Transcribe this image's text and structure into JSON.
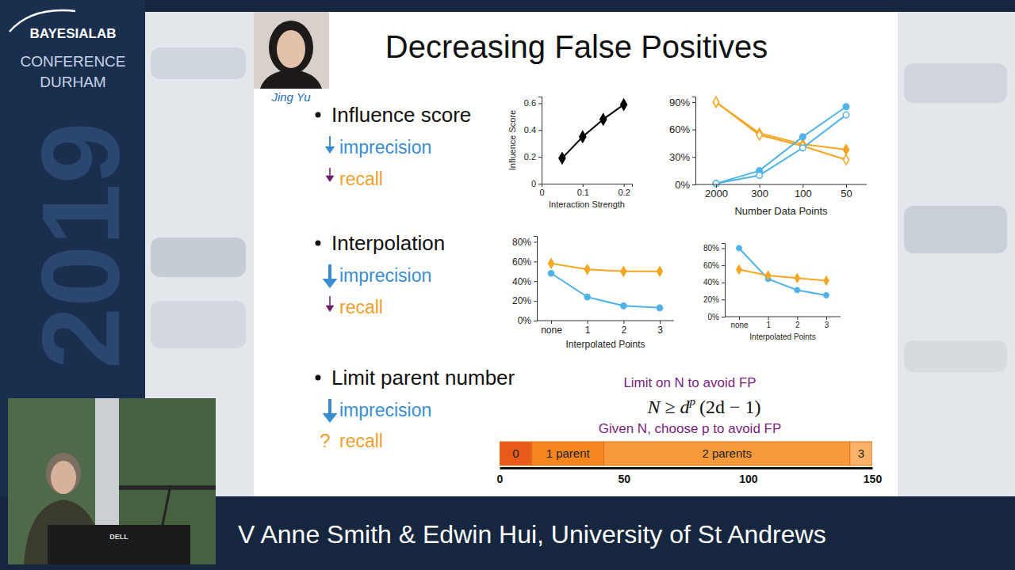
{
  "frame": {
    "logo": "BAYESIALAB",
    "event": "CONFERENCE",
    "city": "DURHAM",
    "year": "2019",
    "monitor_brand": "DELL",
    "caption": "V Anne Smith & Edwin Hui, University of St Andrews"
  },
  "slide": {
    "title": "Decreasing False Positives",
    "photo_caption": "Jing Yu",
    "bullets": [
      {
        "text": "Influence score",
        "effects": [
          {
            "text": "imprecision"
          },
          {
            "text": "recall"
          }
        ]
      },
      {
        "text": "Interpolation",
        "effects": [
          {
            "text": "imprecision"
          },
          {
            "text": "recall"
          }
        ]
      },
      {
        "text": "Limit parent number",
        "effects": [
          {
            "text": "imprecision"
          },
          {
            "prefix": "?",
            "text": "recall"
          }
        ]
      }
    ],
    "note": {
      "above": "Limit on N to avoid FP",
      "formula": {
        "base": "N ≥ d",
        "exponent": "p",
        "tail": "(2d − 1)"
      },
      "below": "Given N, choose p to avoid FP"
    }
  },
  "chart_data": [
    {
      "type": "line",
      "x": [
        0.05,
        0.1,
        0.15,
        0.2
      ],
      "values": [
        0.19,
        0.35,
        0.48,
        0.59
      ],
      "color": "#000000",
      "marker": "diamond",
      "x_label": "Interaction Strength",
      "y_label": "Influence Score",
      "xlim": [
        0,
        0.22
      ],
      "xticks": [
        0,
        0.1,
        0.2
      ],
      "ylim": [
        0,
        0.65
      ],
      "yticks": [
        0,
        0.2,
        0.4,
        0.6
      ]
    },
    {
      "type": "line",
      "categories": [
        "2000",
        "300",
        "100",
        "50"
      ],
      "series": [
        {
          "color": "#f5a623",
          "marker": "diamond",
          "values": [
            90,
            56,
            44,
            38
          ]
        },
        {
          "color": "#f5a623",
          "marker": "open-diamond",
          "values": [
            90,
            54,
            42,
            27
          ]
        },
        {
          "color": "#4fb3e8",
          "marker": "circle",
          "values": [
            1,
            15,
            52,
            85
          ]
        },
        {
          "color": "#4fb3e8",
          "marker": "open-circle",
          "values": [
            1,
            10,
            40,
            76
          ]
        }
      ],
      "x_label": "Number Data Points",
      "ylim": [
        0,
        96
      ],
      "yticks": [
        {
          "value": 0,
          "label": "0%"
        },
        {
          "value": 30,
          "label": "30%"
        },
        {
          "value": 60,
          "label": "60%"
        },
        {
          "value": 90,
          "label": "90%"
        }
      ]
    },
    {
      "type": "line",
      "categories": [
        "none",
        "1",
        "2",
        "3"
      ],
      "series": [
        {
          "color": "#f5a623",
          "marker": "diamond",
          "values": [
            58,
            52,
            50,
            50
          ]
        },
        {
          "color": "#4fb3e8",
          "marker": "circle",
          "values": [
            48,
            24,
            15,
            13
          ]
        }
      ],
      "x_label": "Interpolated Points",
      "ylim": [
        0,
        86
      ],
      "yticks": [
        {
          "value": 0,
          "label": "0%"
        },
        {
          "value": 20,
          "label": "20%"
        },
        {
          "value": 40,
          "label": "40%"
        },
        {
          "value": 60,
          "label": "60%"
        },
        {
          "value": 80,
          "label": "80%"
        }
      ]
    },
    {
      "type": "line",
      "categories": [
        "none",
        "1",
        "2",
        "3"
      ],
      "series": [
        {
          "color": "#4fb3e8",
          "marker": "circle",
          "values": [
            80,
            44,
            31,
            25
          ]
        },
        {
          "color": "#f5a623",
          "marker": "diamond",
          "values": [
            55,
            48,
            45,
            42
          ]
        }
      ],
      "x_label": "Interpolated Points",
      "ylim": [
        0,
        86
      ],
      "yticks": [
        {
          "value": 0,
          "label": "0%"
        },
        {
          "value": 20,
          "label": "20%"
        },
        {
          "value": 40,
          "label": "40%"
        },
        {
          "value": 60,
          "label": "60%"
        },
        {
          "value": 80,
          "label": "80%"
        }
      ]
    },
    {
      "type": "bar",
      "orientation": "horizontal",
      "stacked": true,
      "categories": [
        null
      ],
      "series": [
        {
          "name": "0",
          "color": "#ea5a1a",
          "values": [
            13
          ]
        },
        {
          "name": "1 parent",
          "color": "#f5851f",
          "values": [
            29
          ]
        },
        {
          "name": "2 parents",
          "color": "#f89a3c",
          "values": [
            99
          ]
        },
        {
          "name": "3",
          "color": "#fbb36a",
          "values": [
            9
          ]
        }
      ],
      "xlim": [
        0,
        150
      ],
      "xticks": [
        0,
        50,
        100,
        150
      ]
    }
  ]
}
